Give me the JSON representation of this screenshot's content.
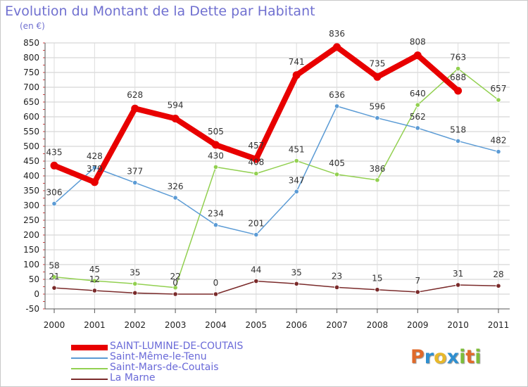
{
  "header": {
    "title": "Evolution du Montant de la Dette par Habitant",
    "subtitle": "(en €)"
  },
  "logo": {
    "text": "Proxiti",
    "letters": [
      {
        "ch": "P",
        "color": "#e06a2a"
      },
      {
        "ch": "r",
        "color": "#2e8fd0"
      },
      {
        "ch": "o",
        "color": "#e8b82a"
      },
      {
        "ch": "x",
        "color": "#2e8fd0"
      },
      {
        "ch": "i",
        "color": "#7dbd3a"
      },
      {
        "ch": "t",
        "color": "#e06a2a"
      },
      {
        "ch": "i",
        "color": "#7dbd3a"
      }
    ]
  },
  "chart_data": {
    "type": "line",
    "title": "Evolution du Montant de la Dette par Habitant",
    "ylabel": "(en €)",
    "xlabel": "",
    "categories": [
      "2000",
      "2001",
      "2002",
      "2003",
      "2004",
      "2005",
      "2006",
      "2007",
      "2008",
      "2009",
      "2010",
      "2011"
    ],
    "ylim": [
      -50,
      850
    ],
    "yticks": [
      -50,
      0,
      50,
      100,
      150,
      200,
      250,
      300,
      350,
      400,
      450,
      500,
      550,
      600,
      650,
      700,
      750,
      800,
      850
    ],
    "grid": true,
    "legend_position": "bottom-left",
    "series": [
      {
        "name": "SAINT-LUMINE-DE-COUTAIS",
        "color": "#e80000",
        "width": 8,
        "labelled": true,
        "values": [
          435,
          379,
          628,
          594,
          505,
          457,
          741,
          836,
          735,
          808,
          688,
          null
        ],
        "labels": [
          "435",
          "379",
          "628",
          "594",
          "505",
          "457",
          "741",
          "836",
          "735",
          "808",
          "688",
          ""
        ]
      },
      {
        "name": "Saint-Même-le-Tenu",
        "color": "#5b9bd5",
        "width": 1.5,
        "labelled": true,
        "values": [
          306,
          428,
          377,
          326,
          234,
          201,
          347,
          636,
          596,
          562,
          518,
          482
        ],
        "labels": [
          "306",
          "428",
          "377",
          "326",
          "234",
          "201",
          "347",
          "636",
          "596",
          "562",
          "518",
          "482"
        ]
      },
      {
        "name": "Saint-Mars-de-Coutais",
        "color": "#92d050",
        "width": 1.5,
        "labelled": true,
        "values": [
          58,
          45,
          35,
          22,
          430,
          408,
          451,
          405,
          386,
          640,
          763,
          657
        ],
        "labels": [
          "58",
          "45",
          "35",
          "22",
          "430",
          "408",
          "451",
          "405",
          "386",
          "640",
          "763",
          "657"
        ]
      },
      {
        "name": "La Marne",
        "color": "#7a2a2a",
        "width": 1.5,
        "labelled": true,
        "values": [
          21,
          12,
          4,
          0,
          0,
          44,
          35,
          23,
          15,
          7,
          31,
          28
        ],
        "labels": [
          "21",
          "12",
          "",
          "0",
          "0",
          "44",
          "35",
          "23",
          "15",
          "7",
          "31",
          "28"
        ]
      }
    ]
  }
}
